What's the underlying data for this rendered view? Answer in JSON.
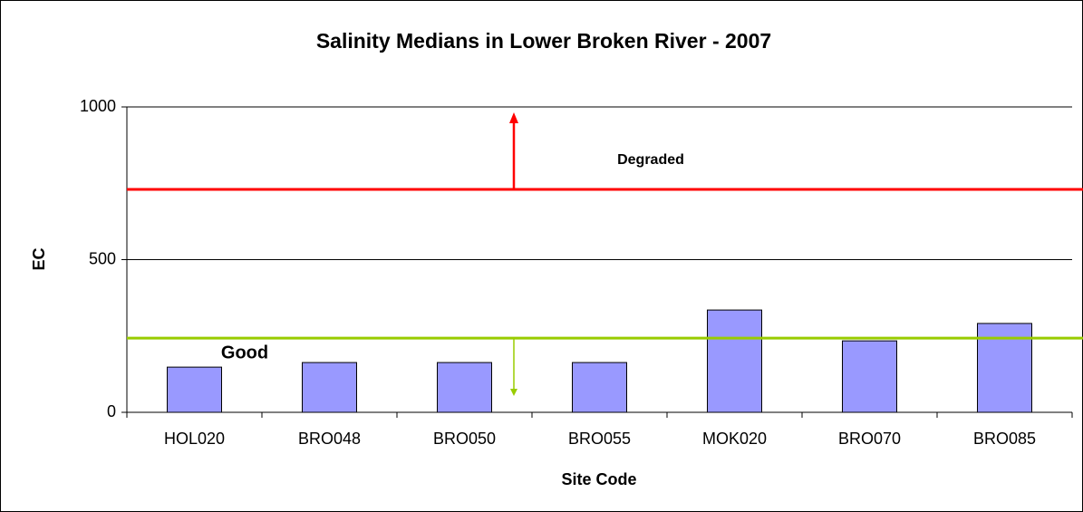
{
  "chart_data": {
    "type": "bar",
    "title": "Salinity Medians in Lower Broken River - 2007",
    "x_label": "Site Code",
    "y_label": "EC",
    "categories": [
      "HOL020",
      "BRO048",
      "BRO050",
      "BRO055",
      "MOK020",
      "BRO070",
      "BRO085"
    ],
    "values": [
      148,
      163,
      163,
      163,
      335,
      234,
      291
    ],
    "color": "#9999ff",
    "ylim": [
      0,
      1000
    ],
    "yticks": [
      0,
      500,
      1000
    ],
    "grid": true,
    "thresholds": [
      {
        "label": "Degraded",
        "value": 730,
        "color": "#ff0000"
      },
      {
        "label": "Good",
        "value": 243,
        "color": "#99cc00"
      }
    ]
  }
}
